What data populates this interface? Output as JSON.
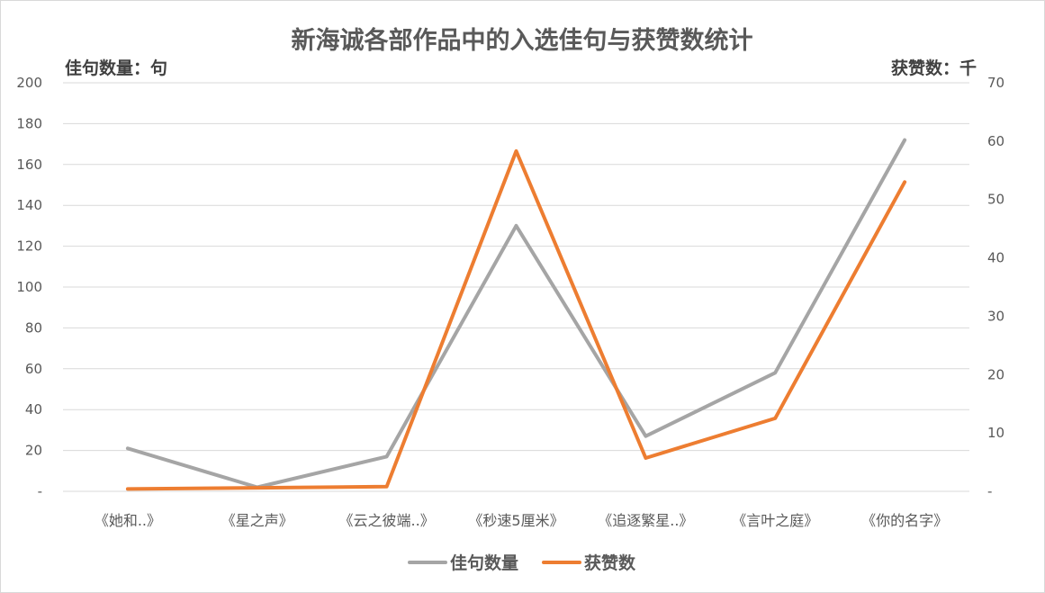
{
  "chart_data": {
    "type": "line",
    "title": "新海诚各部作品中的入选佳句与获赞数统计",
    "ylabel": "佳句数量：句",
    "y2label": "获赞数：千",
    "categories": [
      "《她和..》",
      "《星之声》",
      "《云之彼端..》",
      "《秒速5厘米》",
      "《追逐繁星..》",
      "《言叶之庭》",
      "《你的名字》"
    ],
    "series": [
      {
        "name": "佳句数量",
        "axis": "left",
        "color": "#a5a5a5",
        "values": [
          21,
          2,
          17,
          130,
          27,
          58,
          172
        ]
      },
      {
        "name": "获赞数",
        "axis": "right",
        "color": "#ed7d31",
        "values": [
          0.4,
          0.6,
          0.8,
          58.3,
          5.7,
          12.5,
          53.0
        ]
      }
    ],
    "ylim": [
      0,
      200
    ],
    "y2lim": [
      0,
      70
    ],
    "yticks": [
      "-",
      "20",
      "40",
      "60",
      "80",
      "100",
      "120",
      "140",
      "160",
      "180",
      "200"
    ],
    "y2ticks": [
      "-",
      "10",
      "20",
      "30",
      "40",
      "50",
      "60",
      "70"
    ],
    "grid": true,
    "legend": "bottom"
  }
}
